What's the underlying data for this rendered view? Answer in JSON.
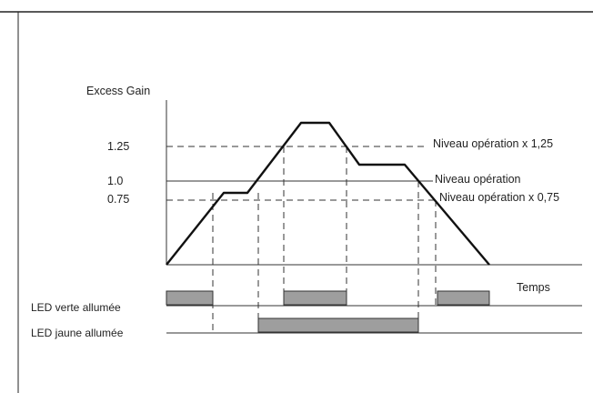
{
  "diagram": {
    "y_axis_label": "Excess Gain",
    "x_axis_label": "Temps",
    "ticks": [
      "1.25",
      "1.0",
      "0.75"
    ],
    "level_labels": {
      "high": "Niveau opération x 1,25",
      "mid": "Niveau opération",
      "low": "Niveau opération x 0,75"
    },
    "rows": {
      "green": "LED verte allumée",
      "yellow": "LED jaune allumée"
    }
  }
}
